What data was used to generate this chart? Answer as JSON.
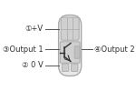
{
  "bg_color": "white",
  "connector_border": "#aaaaaa",
  "connector_fill": "#e8e8e8",
  "inner_fill": "#d0d0d0",
  "dark_fill": "#999999",
  "line_color": "#555555",
  "text_color": "#333333",
  "labels": {
    "top_left": "①+V",
    "mid_left": "③Output 1",
    "bot_left": "② 0 V",
    "mid_right": "④Output 2"
  },
  "fig_width": 1.5,
  "fig_height": 1.0,
  "dpi": 100
}
